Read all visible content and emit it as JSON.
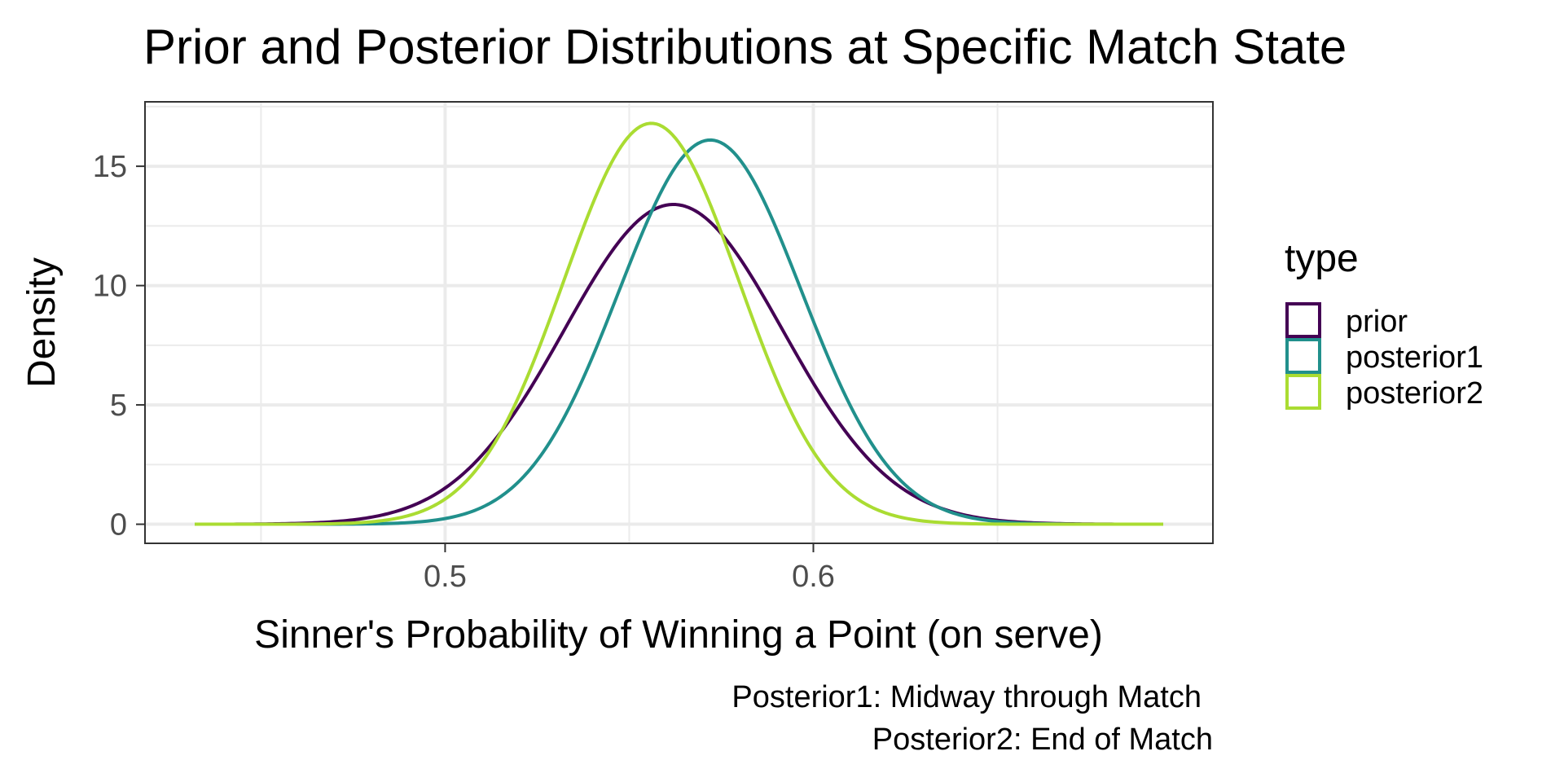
{
  "chart_data": {
    "type": "line",
    "title": "Prior and Posterior Distributions at Specific Match State",
    "xlabel": "Sinner's Probability of Winning a Point (on serve)",
    "ylabel": "Density",
    "xlim": [
      0.4185,
      0.7085
    ],
    "ylim": [
      -0.8,
      17.7
    ],
    "x_ticks": [
      0.5,
      0.6
    ],
    "x_tick_labels": [
      "0.5",
      "0.6"
    ],
    "y_ticks": [
      0,
      5,
      10,
      15
    ],
    "y_tick_labels": [
      "0",
      "5",
      "10",
      "15"
    ],
    "grid": true,
    "legend": {
      "title": "type",
      "placement": "right",
      "entries": [
        "prior",
        "posterior1",
        "posterior2"
      ]
    },
    "caption": {
      "line1": "Posterior1: Midway through Match",
      "line2": "Posterior2: End of Match"
    },
    "domain": [
      0.432,
      0.695
    ],
    "series": [
      {
        "name": "prior",
        "color": "#440154",
        "mean": 0.562,
        "sd": 0.0297,
        "peak": 13.4
      },
      {
        "name": "posterior1",
        "color": "#21908C",
        "mean": 0.572,
        "sd": 0.0248,
        "peak": 16.1
      },
      {
        "name": "posterior2",
        "color": "#AADC32",
        "mean": 0.556,
        "sd": 0.0238,
        "peak": 16.8
      }
    ]
  }
}
